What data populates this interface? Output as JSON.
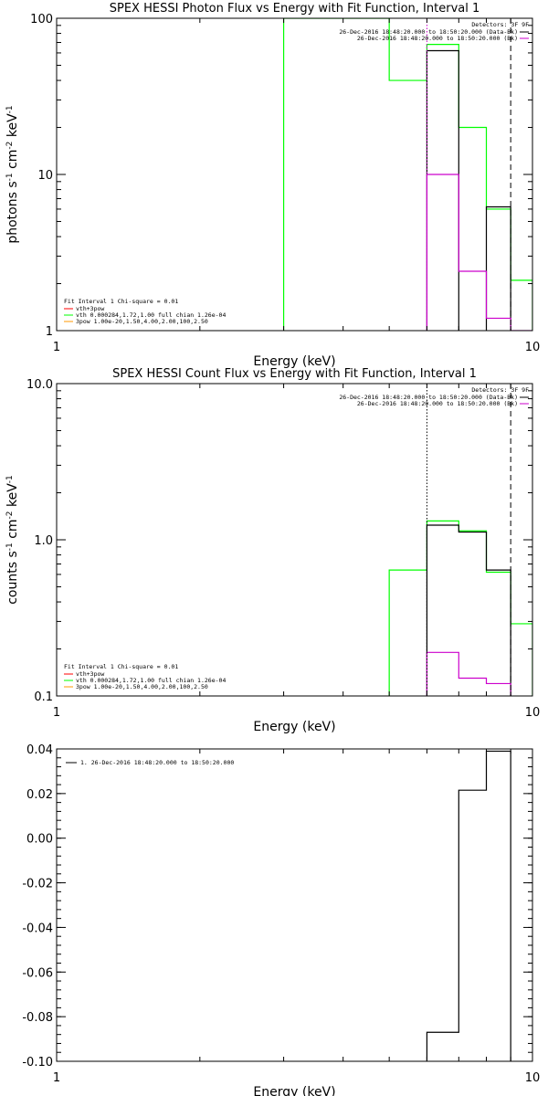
{
  "colors": {
    "background": "#ffffff",
    "black": "#000000",
    "green": "#00ff00",
    "magenta": "#cc00cc",
    "red": "#ff0000",
    "orange": "#ff9900"
  },
  "chart_data": [
    {
      "type": "line",
      "step": true,
      "title": "SPEX HESSI Photon Flux vs Energy with Fit Function, Interval 1",
      "xlabel": "Energy (keV)",
      "ylabel": {
        "base": "photons s",
        "e1": "-1",
        "mid": " cm",
        "e2": "-2",
        "end": " keV",
        "e3": "-1"
      },
      "xscale": "log",
      "yscale": "log",
      "xlim": [
        1,
        10
      ],
      "ylim": [
        1,
        100
      ],
      "xticks": [
        {
          "v": 1,
          "label": "1"
        },
        {
          "v": 10,
          "label": "10"
        }
      ],
      "yticks": [
        {
          "v": 1,
          "label": "1"
        },
        {
          "v": 10,
          "label": "10"
        },
        {
          "v": 100,
          "label": "100"
        }
      ],
      "edges": [
        3,
        4,
        5,
        6,
        7,
        8,
        9,
        10
      ],
      "series": [
        {
          "key": "model",
          "color": "#00ff00",
          "values": [
            120,
            120,
            40,
            68,
            20,
            6,
            2.1
          ]
        },
        {
          "key": "data",
          "color": "#000000",
          "values": [
            null,
            null,
            null,
            62,
            null,
            6.2,
            null
          ]
        },
        {
          "key": "bkg",
          "color": "#cc00cc",
          "values": [
            null,
            null,
            null,
            10,
            2.4,
            1.2,
            0.8
          ]
        }
      ],
      "vlines": [
        {
          "x": 6,
          "style": "dotted",
          "color": "#cc00cc"
        },
        {
          "x": 9,
          "style": "dashed",
          "color": "#000000"
        }
      ],
      "detectors": "Detectors: 3F 9F",
      "legend_right": [
        {
          "text": "26-Dec-2016 18:48:20.000 to 18:50:20.000 (Data-Bk)",
          "color": "#000000"
        },
        {
          "text": "26-Dec-2016 18:48:20.000 to 18:50:20.000 (Bk)",
          "color": "#cc00cc"
        }
      ],
      "legend_left_header": "Fit Interval  1    Chi-square = 0.01",
      "legend_left": [
        {
          "text": "vth+3pow",
          "color": "#ff0000"
        },
        {
          "text": "vth 0.000284,1.72,1.00  full chian 1.26e-04",
          "color": "#00ff00"
        },
        {
          "text": "3pow 1.00e-20,1.50,4.00,2.00,100,2.50",
          "color": "#ff9900"
        }
      ]
    },
    {
      "type": "line",
      "step": true,
      "title": "SPEX HESSI Count Flux vs Energy with Fit Function, Interval 1",
      "xlabel": "Energy (keV)",
      "ylabel": {
        "base": "counts s",
        "e1": "-1",
        "mid": " cm",
        "e2": "-2",
        "end": " keV",
        "e3": "-1"
      },
      "xscale": "log",
      "yscale": "log",
      "xlim": [
        1,
        10
      ],
      "ylim": [
        0.1,
        10
      ],
      "xticks": [
        {
          "v": 1,
          "label": "1"
        },
        {
          "v": 10,
          "label": "10"
        }
      ],
      "yticks": [
        {
          "v": 0.1,
          "label": "0.1"
        },
        {
          "v": 1,
          "label": "1.0"
        },
        {
          "v": 10,
          "label": "10.0"
        }
      ],
      "edges": [
        5,
        6,
        7,
        8,
        9,
        10
      ],
      "series": [
        {
          "key": "model",
          "color": "#00ff00",
          "values": [
            0.64,
            1.32,
            1.14,
            0.62,
            0.29
          ]
        },
        {
          "key": "data",
          "color": "#000000",
          "values": [
            null,
            1.24,
            1.12,
            0.64,
            null
          ]
        },
        {
          "key": "bkg",
          "color": "#cc00cc",
          "values": [
            null,
            0.19,
            0.13,
            0.12,
            null
          ]
        }
      ],
      "vlines": [
        {
          "x": 6,
          "style": "dotted",
          "color": "#000000"
        },
        {
          "x": 9,
          "style": "dashed",
          "color": "#000000"
        }
      ],
      "detectors": "Detectors: 3F 9F",
      "legend_right": [
        {
          "text": "26-Dec-2016 18:48:20.000 to 18:50:20.000 (Data-Bk)",
          "color": "#000000"
        },
        {
          "text": "26-Dec-2016 18:48:20.000 to 18:50:20.000 (Bk)",
          "color": "#cc00cc"
        }
      ],
      "legend_left_header": "Fit Interval  1    Chi-square = 0.01",
      "legend_left": [
        {
          "text": "vth+3pow",
          "color": "#ff0000"
        },
        {
          "text": "vth 0.000284,1.72,1.00  full chian 1.26e-04",
          "color": "#00ff00"
        },
        {
          "text": "3pow 1.00e-20,1.50,4.00,2.00,100,2.50",
          "color": "#ff9900"
        }
      ]
    },
    {
      "type": "line",
      "step": true,
      "title": "",
      "xlabel": "Energy (keV)",
      "xscale": "log",
      "yscale": "linear",
      "xlim": [
        1,
        10
      ],
      "ylim": [
        -0.1,
        0.04
      ],
      "xticks": [
        {
          "v": 1,
          "label": "1"
        },
        {
          "v": 10,
          "label": "10"
        }
      ],
      "yticks": [
        {
          "v": -0.1,
          "label": "-0.10"
        },
        {
          "v": -0.08,
          "label": "-0.08"
        },
        {
          "v": -0.06,
          "label": "-0.06"
        },
        {
          "v": -0.04,
          "label": "-0.04"
        },
        {
          "v": -0.02,
          "label": "-0.02"
        },
        {
          "v": 0.0,
          "label": "0.00"
        },
        {
          "v": 0.02,
          "label": "0.02"
        },
        {
          "v": 0.04,
          "label": "0.04"
        }
      ],
      "edges": [
        6,
        7,
        8,
        9
      ],
      "series": [
        {
          "key": "resid",
          "color": "#000000",
          "values": [
            -0.087,
            0.0215,
            0.039
          ]
        }
      ],
      "vlines": [],
      "legend_left_header": "",
      "legend_top": [
        {
          "text": "1. 26-Dec-2016 18:48:20.000 to 18:50:20.000",
          "color": "#000000"
        }
      ]
    }
  ]
}
